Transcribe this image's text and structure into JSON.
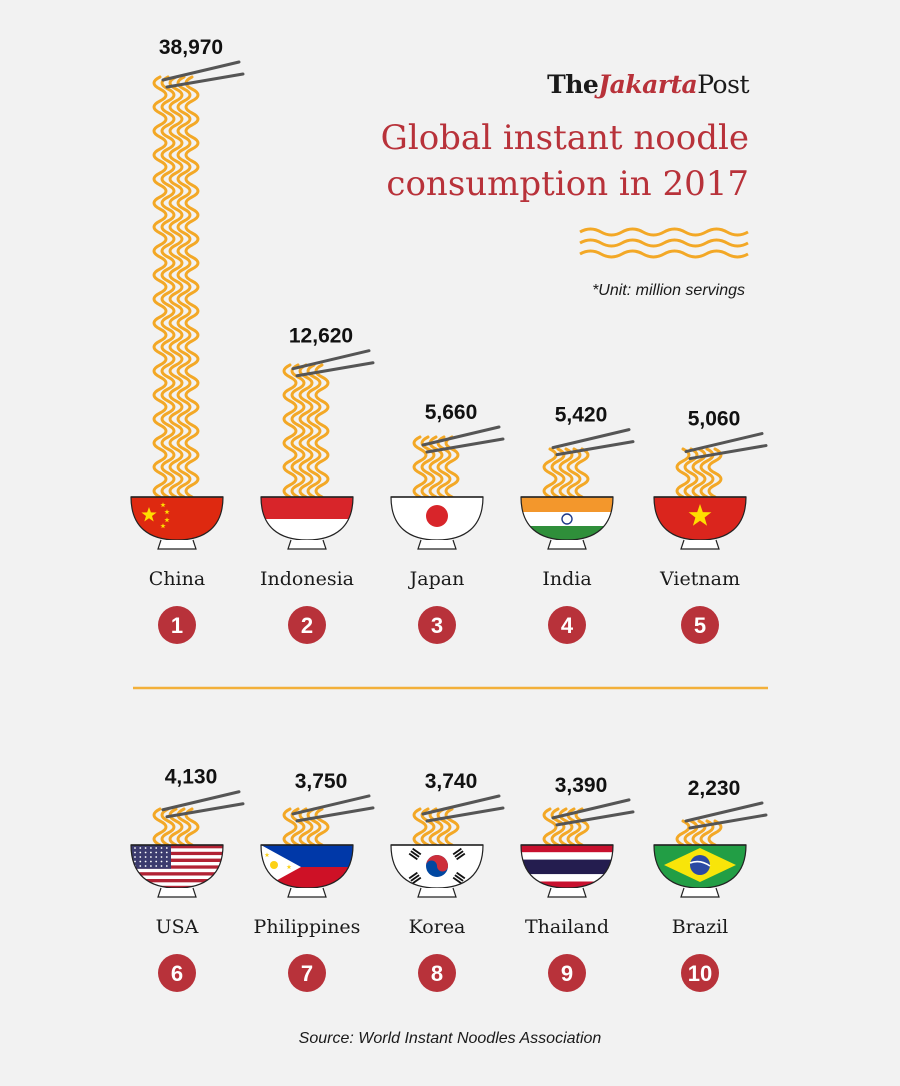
{
  "brand": {
    "the": "The",
    "jakarta": "Jakarta",
    "post": "Post"
  },
  "title_line1": "Global instant noodle",
  "title_line2": "consumption in 2017",
  "unit": "*Unit: million servings",
  "source": "Source: World Instant Noodles Association",
  "colors": {
    "accent": "#b8323a",
    "noodle": "#f3a826",
    "divider": "#f3b03a",
    "chopstick": "#555555",
    "badge": "#b8323a"
  },
  "chart_data": {
    "type": "bar",
    "title": "Global instant noodle consumption in 2017",
    "unit": "million servings",
    "categories": [
      "China",
      "Indonesia",
      "Japan",
      "India",
      "Vietnam",
      "USA",
      "Philippines",
      "Korea",
      "Thailand",
      "Brazil"
    ],
    "values": [
      38970,
      12620,
      5660,
      5420,
      5060,
      4130,
      3750,
      3740,
      3390,
      2230
    ],
    "value_labels": [
      "38,970",
      "12,620",
      "5,660",
      "5,420",
      "5,060",
      "4,130",
      "3,750",
      "3,740",
      "3,390",
      "2,230"
    ],
    "ranks": [
      "1",
      "2",
      "3",
      "4",
      "5",
      "6",
      "7",
      "8",
      "9",
      "10"
    ],
    "flags": [
      "china-flag",
      "indonesia-flag",
      "japan-flag",
      "india-flag",
      "vietnam-flag",
      "usa-flag",
      "philippines-flag",
      "korea-flag",
      "thailand-flag",
      "brazil-flag"
    ]
  }
}
